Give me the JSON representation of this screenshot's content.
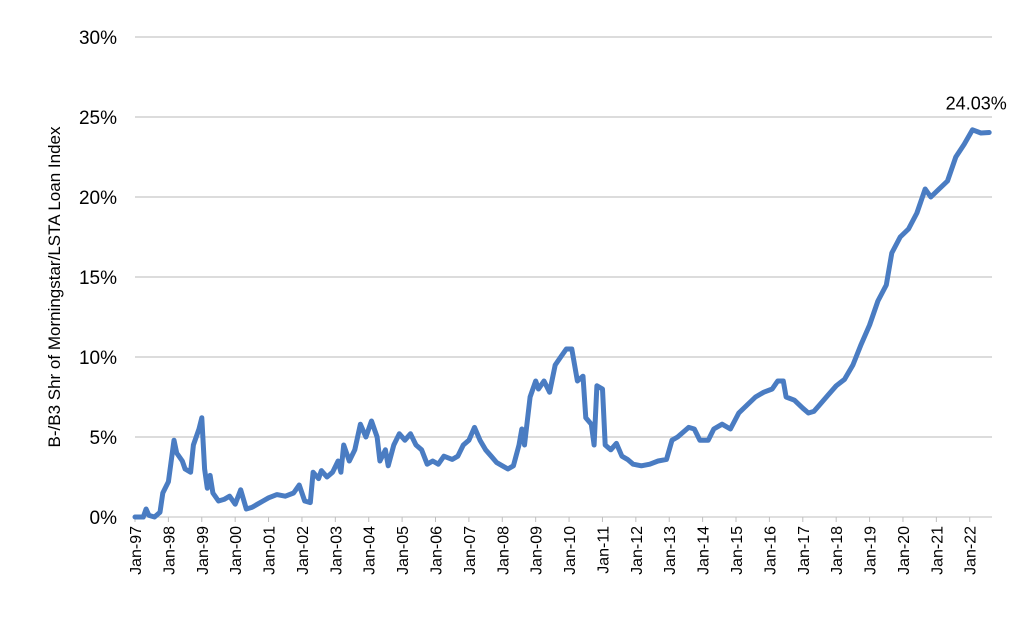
{
  "chart_data": {
    "type": "line",
    "title": "",
    "xlabel": "",
    "ylabel": "B-/B3 Shr of Morningstar/LSTA Loan Index",
    "ylim": [
      0,
      30
    ],
    "grid": "horizontal",
    "line_color": "#4a7cc2",
    "yticks": [
      "0%",
      "5%",
      "10%",
      "15%",
      "20%",
      "25%",
      "30%"
    ],
    "xticks": [
      "Jan-97",
      "Jan-98",
      "Jan-99",
      "Jan-00",
      "Jan-01",
      "Jan-02",
      "Jan-03",
      "Jan-04",
      "Jan-05",
      "Jan-06",
      "Jan-07",
      "Jan-08",
      "Jan-09",
      "Jan-10",
      "Jan-11",
      "Jan-12",
      "Jan-13",
      "Jan-14",
      "Jan-15",
      "Jan-16",
      "Jan-17",
      "Jan-18",
      "Jan-19",
      "Jan-20",
      "Jan-21",
      "Jan-22"
    ],
    "annotation": "24.03%",
    "series": [
      {
        "points": [
          [
            "1997-01",
            0.0
          ],
          [
            "1997-04",
            0.0
          ],
          [
            "1997-05",
            0.5
          ],
          [
            "1997-06",
            0.1
          ],
          [
            "1997-08",
            0.0
          ],
          [
            "1997-10",
            0.3
          ],
          [
            "1997-11",
            1.5
          ],
          [
            "1998-01",
            2.2
          ],
          [
            "1998-03",
            4.8
          ],
          [
            "1998-04",
            4.0
          ],
          [
            "1998-06",
            3.5
          ],
          [
            "1998-07",
            3.0
          ],
          [
            "1998-09",
            2.8
          ],
          [
            "1998-10",
            4.5
          ],
          [
            "1998-12",
            5.5
          ],
          [
            "1999-01",
            6.2
          ],
          [
            "1999-02",
            3.0
          ],
          [
            "1999-03",
            1.8
          ],
          [
            "1999-04",
            2.6
          ],
          [
            "1999-05",
            1.5
          ],
          [
            "1999-07",
            1.0
          ],
          [
            "1999-09",
            1.1
          ],
          [
            "1999-11",
            1.3
          ],
          [
            "2000-01",
            0.8
          ],
          [
            "2000-03",
            1.7
          ],
          [
            "2000-05",
            0.5
          ],
          [
            "2000-07",
            0.6
          ],
          [
            "2000-09",
            0.8
          ],
          [
            "2000-11",
            1.0
          ],
          [
            "2001-01",
            1.2
          ],
          [
            "2001-04",
            1.4
          ],
          [
            "2001-07",
            1.3
          ],
          [
            "2001-10",
            1.5
          ],
          [
            "2001-12",
            2.0
          ],
          [
            "2002-02",
            1.0
          ],
          [
            "2002-04",
            0.9
          ],
          [
            "2002-05",
            2.8
          ],
          [
            "2002-07",
            2.4
          ],
          [
            "2002-08",
            2.9
          ],
          [
            "2002-10",
            2.5
          ],
          [
            "2002-12",
            2.8
          ],
          [
            "2003-02",
            3.5
          ],
          [
            "2003-03",
            2.8
          ],
          [
            "2003-04",
            4.5
          ],
          [
            "2003-06",
            3.5
          ],
          [
            "2003-08",
            4.2
          ],
          [
            "2003-10",
            5.8
          ],
          [
            "2003-12",
            5.0
          ],
          [
            "2004-02",
            6.0
          ],
          [
            "2004-04",
            5.0
          ],
          [
            "2004-05",
            3.5
          ],
          [
            "2004-07",
            4.2
          ],
          [
            "2004-08",
            3.2
          ],
          [
            "2004-10",
            4.5
          ],
          [
            "2004-12",
            5.2
          ],
          [
            "2005-02",
            4.8
          ],
          [
            "2005-04",
            5.2
          ],
          [
            "2005-06",
            4.5
          ],
          [
            "2005-08",
            4.2
          ],
          [
            "2005-10",
            3.3
          ],
          [
            "2005-12",
            3.5
          ],
          [
            "2006-02",
            3.3
          ],
          [
            "2006-04",
            3.8
          ],
          [
            "2006-07",
            3.6
          ],
          [
            "2006-09",
            3.8
          ],
          [
            "2006-11",
            4.5
          ],
          [
            "2007-01",
            4.8
          ],
          [
            "2007-03",
            5.6
          ],
          [
            "2007-05",
            4.8
          ],
          [
            "2007-07",
            4.2
          ],
          [
            "2007-09",
            3.8
          ],
          [
            "2007-11",
            3.4
          ],
          [
            "2008-01",
            3.2
          ],
          [
            "2008-03",
            3.0
          ],
          [
            "2008-05",
            3.2
          ],
          [
            "2008-07",
            4.5
          ],
          [
            "2008-08",
            5.5
          ],
          [
            "2008-09",
            4.5
          ],
          [
            "2008-11",
            7.5
          ],
          [
            "2009-01",
            8.5
          ],
          [
            "2009-02",
            8.0
          ],
          [
            "2009-04",
            8.5
          ],
          [
            "2009-06",
            7.8
          ],
          [
            "2009-08",
            9.5
          ],
          [
            "2009-10",
            10.0
          ],
          [
            "2009-12",
            10.5
          ],
          [
            "2010-02",
            10.5
          ],
          [
            "2010-04",
            8.5
          ],
          [
            "2010-06",
            8.8
          ],
          [
            "2010-07",
            6.2
          ],
          [
            "2010-09",
            5.8
          ],
          [
            "2010-10",
            4.5
          ],
          [
            "2010-11",
            8.2
          ],
          [
            "2011-01",
            8.0
          ],
          [
            "2011-02",
            4.5
          ],
          [
            "2011-04",
            4.2
          ],
          [
            "2011-06",
            4.6
          ],
          [
            "2011-08",
            3.8
          ],
          [
            "2011-10",
            3.6
          ],
          [
            "2011-12",
            3.3
          ],
          [
            "2012-03",
            3.2
          ],
          [
            "2012-06",
            3.3
          ],
          [
            "2012-09",
            3.5
          ],
          [
            "2012-12",
            3.6
          ],
          [
            "2013-02",
            4.8
          ],
          [
            "2013-04",
            5.0
          ],
          [
            "2013-06",
            5.3
          ],
          [
            "2013-08",
            5.6
          ],
          [
            "2013-10",
            5.5
          ],
          [
            "2013-12",
            4.8
          ],
          [
            "2014-03",
            4.8
          ],
          [
            "2014-05",
            5.5
          ],
          [
            "2014-08",
            5.8
          ],
          [
            "2014-11",
            5.5
          ],
          [
            "2015-02",
            6.5
          ],
          [
            "2015-05",
            7.0
          ],
          [
            "2015-08",
            7.5
          ],
          [
            "2015-11",
            7.8
          ],
          [
            "2016-02",
            8.0
          ],
          [
            "2016-04",
            8.5
          ],
          [
            "2016-06",
            8.5
          ],
          [
            "2016-07",
            7.5
          ],
          [
            "2016-10",
            7.3
          ],
          [
            "2017-01",
            6.8
          ],
          [
            "2017-03",
            6.5
          ],
          [
            "2017-05",
            6.6
          ],
          [
            "2017-07",
            7.0
          ],
          [
            "2017-10",
            7.6
          ],
          [
            "2018-01",
            8.2
          ],
          [
            "2018-04",
            8.6
          ],
          [
            "2018-07",
            9.5
          ],
          [
            "2018-10",
            10.8
          ],
          [
            "2019-01",
            12.0
          ],
          [
            "2019-04",
            13.5
          ],
          [
            "2019-07",
            14.5
          ],
          [
            "2019-09",
            16.5
          ],
          [
            "2019-12",
            17.5
          ],
          [
            "2020-03",
            18.0
          ],
          [
            "2020-06",
            19.0
          ],
          [
            "2020-09",
            20.5
          ],
          [
            "2020-11",
            20.0
          ],
          [
            "2021-02",
            20.5
          ],
          [
            "2021-05",
            21.0
          ],
          [
            "2021-08",
            22.5
          ],
          [
            "2021-11",
            23.3
          ],
          [
            "2022-02",
            24.2
          ],
          [
            "2022-05",
            24.0
          ],
          [
            "2022-08",
            24.03
          ]
        ]
      }
    ]
  }
}
